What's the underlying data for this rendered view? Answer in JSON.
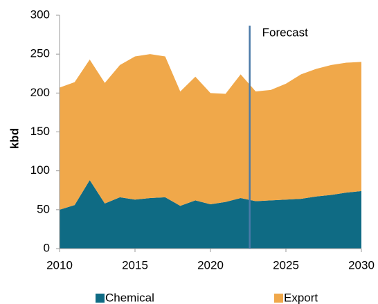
{
  "chart_data": {
    "type": "stacked_area",
    "ylabel": "kbd",
    "x": [
      2010,
      2011,
      2012,
      2013,
      2014,
      2015,
      2016,
      2017,
      2018,
      2019,
      2020,
      2021,
      2022,
      2023,
      2024,
      2025,
      2026,
      2027,
      2028,
      2029,
      2030
    ],
    "series": [
      {
        "name": "Chemical",
        "color": "#0f6b84",
        "values": [
          50,
          56,
          88,
          58,
          66,
          63,
          65,
          66,
          55,
          62,
          57,
          60,
          65,
          61,
          62,
          63,
          64,
          67,
          69,
          72,
          74
        ]
      },
      {
        "name": "Export",
        "color": "#f0a84a",
        "values": [
          157,
          158,
          155,
          155,
          170,
          184,
          185,
          181,
          147,
          159,
          143,
          139,
          159,
          141,
          142,
          149,
          160,
          164,
          167,
          167,
          166
        ]
      }
    ],
    "xlim": [
      2010,
      2030
    ],
    "xticks": [
      2010,
      2015,
      2020,
      2025,
      2030
    ],
    "ylim": [
      0,
      300
    ],
    "yticks": [
      0,
      50,
      100,
      150,
      200,
      250,
      300
    ],
    "annotation": {
      "text": "Forecast",
      "x": 2022.6,
      "color": "#4a7aa8"
    },
    "legend": "bottom"
  }
}
